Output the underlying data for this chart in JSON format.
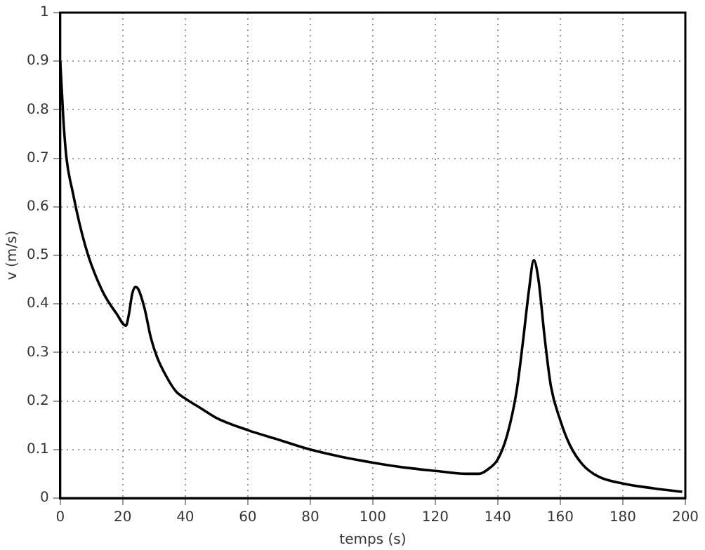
{
  "chart_data": {
    "type": "line",
    "xlabel": "temps (s)",
    "ylabel": "v (m/s)",
    "xlim": [
      0,
      200
    ],
    "xticks": [
      0,
      20,
      40,
      60,
      80,
      100,
      120,
      140,
      160,
      180,
      200
    ],
    "ylim": [
      0,
      1
    ],
    "yticks": [
      0,
      0.1,
      0.2,
      0.3,
      0.4,
      0.5,
      0.6,
      0.7,
      0.8,
      0.9,
      1
    ],
    "grid": true,
    "legend": false,
    "marker": "none",
    "line_style": "solid",
    "series": [
      {
        "color": "#000000",
        "x": [
          0,
          1,
          2,
          4,
          6,
          8,
          10,
          14,
          18,
          21,
          22,
          23,
          24,
          25,
          27,
          29,
          31,
          34,
          37,
          40,
          45,
          50,
          60,
          70,
          80,
          90,
          100,
          110,
          120,
          130,
          134,
          137,
          140,
          143,
          146,
          148,
          150,
          151.5,
          153,
          155,
          157,
          160,
          163,
          167,
          172,
          180,
          190,
          199
        ],
        "values": [
          0.9,
          0.78,
          0.7,
          0.63,
          0.57,
          0.52,
          0.48,
          0.42,
          0.38,
          0.355,
          0.38,
          0.42,
          0.435,
          0.43,
          0.39,
          0.33,
          0.29,
          0.25,
          0.22,
          0.205,
          0.185,
          0.165,
          0.14,
          0.12,
          0.1,
          0.085,
          0.073,
          0.063,
          0.056,
          0.05,
          0.05,
          0.06,
          0.08,
          0.13,
          0.22,
          0.32,
          0.43,
          0.49,
          0.45,
          0.33,
          0.23,
          0.16,
          0.11,
          0.07,
          0.045,
          0.03,
          0.02,
          0.013
        ]
      }
    ]
  }
}
